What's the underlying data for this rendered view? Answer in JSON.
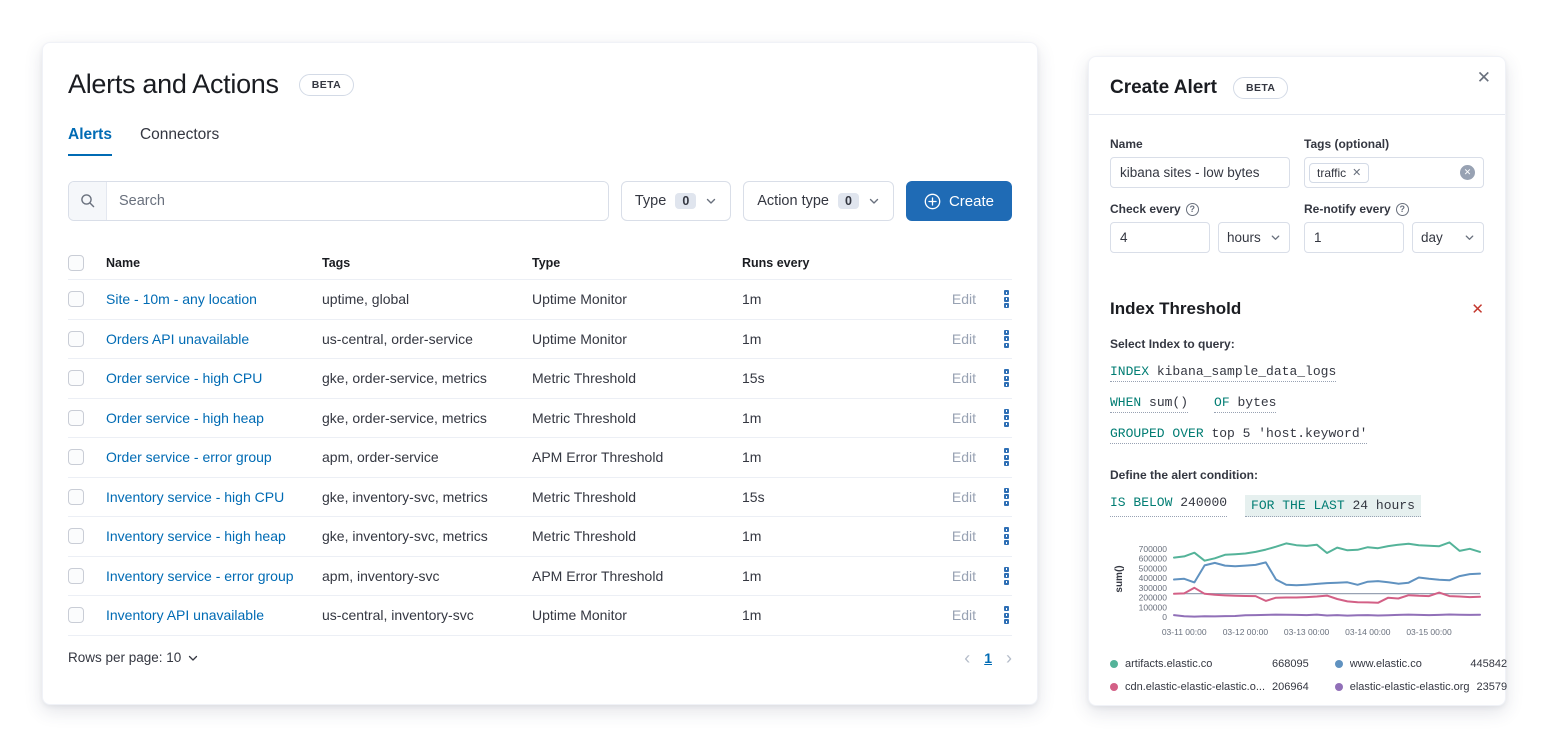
{
  "colors": {
    "primary": "#006BB4",
    "success": "#017D73",
    "danger": "#C4392F"
  },
  "alerts_panel": {
    "title": "Alerts and Actions",
    "beta_badge": "BETA",
    "tabs": [
      {
        "label": "Alerts",
        "active": true
      },
      {
        "label": "Connectors",
        "active": false
      }
    ],
    "search_placeholder": "Search",
    "filters": [
      {
        "label": "Type",
        "count": "0"
      },
      {
        "label": "Action type",
        "count": "0"
      }
    ],
    "create_button": "Create",
    "table": {
      "headers": {
        "name": "Name",
        "tags": "Tags",
        "type": "Type",
        "runs_every": "Runs every"
      },
      "edit_label": "Edit",
      "rows": [
        {
          "name": "Site - 10m - any location",
          "tags": "uptime, global",
          "type": "Uptime Monitor",
          "runs_every": "1m"
        },
        {
          "name": "Orders API unavailable",
          "tags": "us-central, order-service",
          "type": "Uptime Monitor",
          "runs_every": "1m"
        },
        {
          "name": "Order service - high CPU",
          "tags": "gke, order-service, metrics",
          "type": "Metric Threshold",
          "runs_every": "15s"
        },
        {
          "name": "Order service - high heap",
          "tags": "gke, order-service, metrics",
          "type": "Metric Threshold",
          "runs_every": "1m"
        },
        {
          "name": "Order service - error group",
          "tags": "apm, order-service",
          "type": "APM Error Threshold",
          "runs_every": "1m"
        },
        {
          "name": "Inventory service - high CPU",
          "tags": "gke, inventory-svc, metrics",
          "type": "Metric Threshold",
          "runs_every": "15s"
        },
        {
          "name": "Inventory service - high heap",
          "tags": "gke, inventory-svc, metrics",
          "type": "Metric Threshold",
          "runs_every": "1m"
        },
        {
          "name": "Inventory service - error group",
          "tags": "apm, inventory-svc",
          "type": "APM Error Threshold",
          "runs_every": "1m"
        },
        {
          "name": "Inventory API unavailable",
          "tags": "us-central, inventory-svc",
          "type": "Uptime Monitor",
          "runs_every": "1m"
        }
      ],
      "rows_per_page_label": "Rows per page: 10",
      "pagination": {
        "prev": "‹",
        "current_page": "1",
        "next": "›"
      }
    }
  },
  "flyout": {
    "title": "Create Alert",
    "beta_badge": "BETA",
    "close_label": "✕",
    "name_label": "Name",
    "name_value": "kibana sites - low bytes",
    "tags_label": "Tags (optional)",
    "tag_value": "traffic",
    "tag_remove": "✕",
    "clear_all": "✕",
    "check_every_label": "Check every",
    "check_every_value": "4",
    "check_every_unit": "hours",
    "renotify_label": "Re-notify every",
    "renotify_value": "1",
    "renotify_unit": "day",
    "help_glyph": "?",
    "alert_type": {
      "title": "Index Threshold",
      "remove_label": "✕",
      "select_index_label": "Select Index to query:",
      "expressions": [
        {
          "parts": [
            {
              "k": "INDEX",
              "v": "kibana_sample_data_logs"
            }
          ]
        },
        {
          "parts": [
            {
              "k": "WHEN",
              "v": "sum()"
            },
            {
              "k": "OF",
              "v": "bytes"
            }
          ]
        },
        {
          "parts": [
            {
              "k": "GROUPED OVER",
              "v": "top 5 'host.keyword'"
            }
          ]
        }
      ],
      "condition_label": "Define the alert condition:",
      "condition": [
        {
          "k": "IS BELOW",
          "v": "240000",
          "highlight": false
        },
        {
          "k": "FOR THE LAST",
          "v": "24 hours",
          "highlight": true
        }
      ]
    }
  },
  "chart_data": {
    "type": "line",
    "title": "",
    "xlabel": "",
    "ylabel": "sum()",
    "ylim": [
      0,
      780000
    ],
    "y_ticks": [
      700000,
      600000,
      500000,
      400000,
      300000,
      200000,
      100000,
      0
    ],
    "x_ticks": [
      "03-11 00:00",
      "03-12 00:00",
      "03-13 00:00",
      "03-14 00:00",
      "03-15 00:00"
    ],
    "x_tick_indices": [
      1,
      7,
      13,
      19,
      25
    ],
    "points_count": 31,
    "grid": false,
    "legend_position": "bottom",
    "threshold": 240000,
    "threshold_color": "#98a2b3",
    "series": [
      {
        "name": "artifacts.elastic.co",
        "color": "#54B399",
        "current": 668095,
        "values": [
          610000,
          622000,
          660000,
          578000,
          602000,
          638000,
          645000,
          652000,
          668000,
          692000,
          722000,
          755000,
          737000,
          730000,
          742000,
          657000,
          712000,
          685000,
          690000,
          716000,
          706000,
          728000,
          742000,
          752000,
          737000,
          731000,
          727000,
          766000,
          678000,
          700000,
          668095
        ]
      },
      {
        "name": "www.elastic.co",
        "color": "#6092C0",
        "current": 445842,
        "values": [
          385000,
          392000,
          355000,
          530000,
          555000,
          528000,
          520000,
          528000,
          535000,
          560000,
          385000,
          330000,
          325000,
          332000,
          340000,
          348000,
          352000,
          356000,
          330000,
          362000,
          368000,
          356000,
          342000,
          352000,
          405000,
          392000,
          382000,
          377000,
          420000,
          440000,
          445842
        ]
      },
      {
        "name": "cdn.elastic-elastic-elastic.o...",
        "color": "#D36086",
        "current": 206964,
        "values": [
          238000,
          242000,
          300000,
          238000,
          228000,
          222000,
          218000,
          216000,
          215000,
          165000,
          198000,
          200000,
          200000,
          204000,
          210000,
          220000,
          185000,
          160000,
          152000,
          150000,
          146000,
          198000,
          190000,
          224000,
          218000,
          215000,
          250000,
          215000,
          210000,
          204000,
          206964
        ]
      },
      {
        "name": "elastic-elastic-elastic.org",
        "color": "#9170B8",
        "current": 23579,
        "values": [
          20000,
          8000,
          4000,
          8000,
          6000,
          9000,
          10000,
          18000,
          20000,
          22000,
          25000,
          24000,
          22000,
          20000,
          25000,
          15000,
          20000,
          14000,
          17000,
          20000,
          15000,
          18000,
          22000,
          25000,
          22000,
          20000,
          22000,
          26000,
          23000,
          22000,
          23579
        ]
      }
    ]
  }
}
